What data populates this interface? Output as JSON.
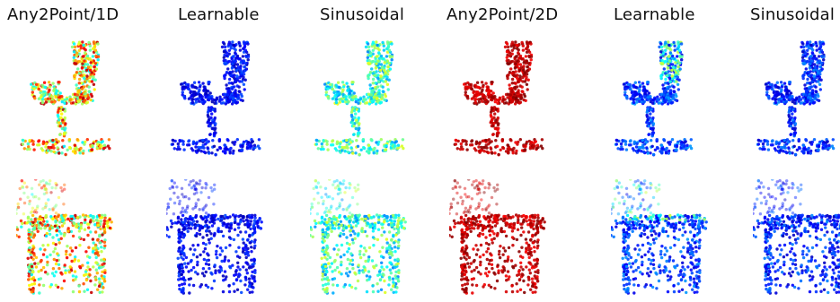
{
  "figure": {
    "columns": [
      {
        "label": "Any2Point/1D",
        "scheme": "mixed"
      },
      {
        "label": "Learnable",
        "scheme": "blue"
      },
      {
        "label": "Sinusoidal",
        "scheme": "cyan"
      },
      {
        "label": "Any2Point/2D",
        "scheme": "red"
      },
      {
        "label": "Learnable",
        "scheme": "blueJet"
      },
      {
        "label": "Sinusoidal",
        "scheme": "blueCool"
      }
    ],
    "rows": [
      {
        "object": "chair"
      },
      {
        "object": "table"
      }
    ]
  }
}
